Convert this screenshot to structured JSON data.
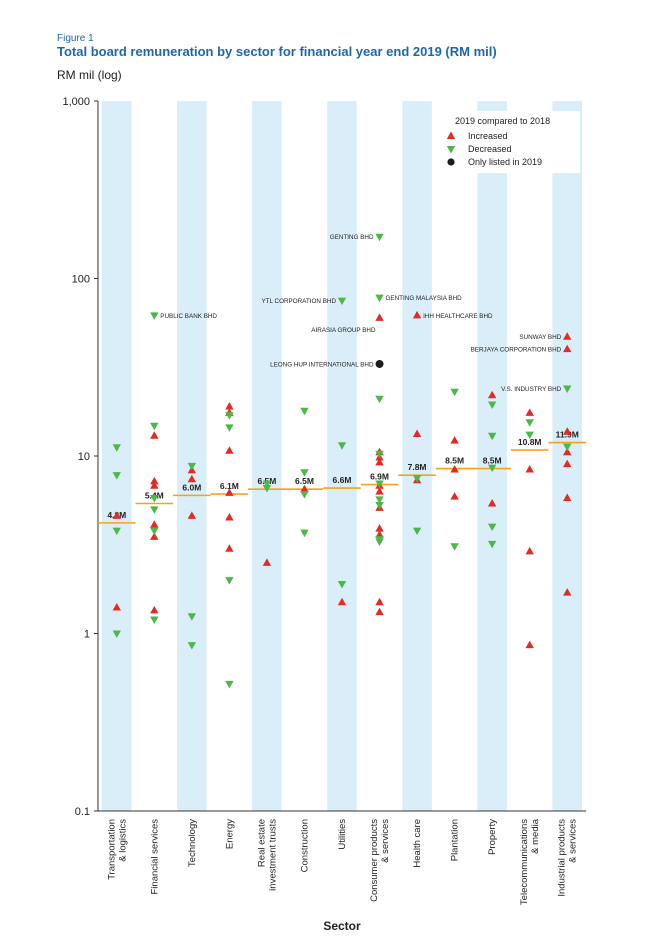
{
  "figure_label": "Figure 1",
  "title": "Total board remuneration by sector for financial year end 2019 (RM mil)",
  "y_unit": "RM mil (log)",
  "colors": {
    "increased": "#e32b24",
    "decreased": "#4cb848",
    "only_2019": "#1d1d1b",
    "median": "#f6a21b",
    "band": "#daeef9"
  },
  "chart_data": {
    "type": "scatter",
    "title": "Total board remuneration by sector for financial year end 2019 (RM mil)",
    "xlabel": "Sector",
    "ylabel": "RM mil (log)",
    "y_scale": "log",
    "ylim": [
      0.1,
      1000
    ],
    "y_ticks": [
      "0.1",
      "1",
      "10",
      "100",
      "1,000"
    ],
    "y_tick_values": [
      0.1,
      1,
      10,
      100,
      1000
    ],
    "grid": false,
    "legend": {
      "title": "2019 compared to 2018",
      "placement": "top-right",
      "entries": [
        {
          "key": "increased",
          "label": "Increased",
          "marker": "triangle-up"
        },
        {
          "key": "decreased",
          "label": "Decreased",
          "marker": "triangle-down"
        },
        {
          "key": "only_2019",
          "label": "Only listed in 2019",
          "marker": "circle"
        }
      ]
    },
    "categories": [
      [
        "Transportation",
        "& logistics"
      ],
      [
        "Financial services"
      ],
      [
        "Technology"
      ],
      [
        "Energy"
      ],
      [
        "Real estate",
        "investment trusts"
      ],
      [
        "Construction"
      ],
      [
        "Utilities"
      ],
      [
        "Consumer products",
        "& services"
      ],
      [
        "Health care"
      ],
      [
        "Plantation"
      ],
      [
        "Property"
      ],
      [
        "Telecommunications",
        "& media"
      ],
      [
        "Industrial products",
        "& services"
      ]
    ],
    "medians": [
      {
        "value": 4.2,
        "label": "4.2M"
      },
      {
        "value": 5.4,
        "label": "5.4M"
      },
      {
        "value": 6.0,
        "label": "6.0M"
      },
      {
        "value": 6.1,
        "label": "6.1M"
      },
      {
        "value": 6.5,
        "label": "6.5M"
      },
      {
        "value": 6.5,
        "label": "6.5M"
      },
      {
        "value": 6.6,
        "label": "6.6M"
      },
      {
        "value": 6.9,
        "label": "6.9M"
      },
      {
        "value": 7.8,
        "label": "7.8M"
      },
      {
        "value": 8.5,
        "label": "8.5M"
      },
      {
        "value": 8.5,
        "label": "8.5M"
      },
      {
        "value": 10.8,
        "label": "10.8M"
      },
      {
        "value": 11.9,
        "label": "11.9M"
      }
    ],
    "series": [
      {
        "key": "increased",
        "name": "Increased",
        "points": [
          {
            "sector": 0,
            "y": 4.6
          },
          {
            "sector": 0,
            "y": 1.4
          },
          {
            "sector": 1,
            "y": 13
          },
          {
            "sector": 1,
            "y": 7.2
          },
          {
            "sector": 1,
            "y": 6.8
          },
          {
            "sector": 1,
            "y": 4.1
          },
          {
            "sector": 1,
            "y": 3.5
          },
          {
            "sector": 1,
            "y": 1.35
          },
          {
            "sector": 2,
            "y": 8.3
          },
          {
            "sector": 2,
            "y": 7.4
          },
          {
            "sector": 2,
            "y": 4.6
          },
          {
            "sector": 3,
            "y": 19
          },
          {
            "sector": 3,
            "y": 17.5
          },
          {
            "sector": 3,
            "y": 10.7
          },
          {
            "sector": 3,
            "y": 6.2
          },
          {
            "sector": 3,
            "y": 4.5
          },
          {
            "sector": 3,
            "y": 3.0
          },
          {
            "sector": 4,
            "y": 2.5
          },
          {
            "sector": 5,
            "y": 6.5
          },
          {
            "sector": 6,
            "y": 1.5
          },
          {
            "sector": 7,
            "y": 60
          },
          {
            "sector": 7,
            "y": 10.5
          },
          {
            "sector": 7,
            "y": 9.8
          },
          {
            "sector": 7,
            "y": 9.2
          },
          {
            "sector": 7,
            "y": 6.8
          },
          {
            "sector": 7,
            "y": 6.3
          },
          {
            "sector": 7,
            "y": 5.1
          },
          {
            "sector": 7,
            "y": 3.9
          },
          {
            "sector": 7,
            "y": 3.6
          },
          {
            "sector": 7,
            "y": 1.5
          },
          {
            "sector": 7,
            "y": 1.32
          },
          {
            "sector": 8,
            "y": 62
          },
          {
            "sector": 8,
            "y": 13.3
          },
          {
            "sector": 8,
            "y": 7.3
          },
          {
            "sector": 9,
            "y": 12.2
          },
          {
            "sector": 9,
            "y": 8.4
          },
          {
            "sector": 9,
            "y": 5.9
          },
          {
            "sector": 10,
            "y": 22
          },
          {
            "sector": 10,
            "y": 5.4
          },
          {
            "sector": 11,
            "y": 17.5
          },
          {
            "sector": 11,
            "y": 8.4
          },
          {
            "sector": 11,
            "y": 2.9
          },
          {
            "sector": 11,
            "y": 0.86
          },
          {
            "sector": 12,
            "y": 47
          },
          {
            "sector": 12,
            "y": 40
          },
          {
            "sector": 12,
            "y": 13.7
          },
          {
            "sector": 12,
            "y": 10.5
          },
          {
            "sector": 12,
            "y": 9.0
          },
          {
            "sector": 12,
            "y": 5.8
          },
          {
            "sector": 12,
            "y": 1.7
          }
        ]
      },
      {
        "key": "decreased",
        "name": "Decreased",
        "points": [
          {
            "sector": 0,
            "y": 11.2
          },
          {
            "sector": 0,
            "y": 7.8
          },
          {
            "sector": 0,
            "y": 3.8
          },
          {
            "sector": 0,
            "y": 1.0
          },
          {
            "sector": 1,
            "y": 62
          },
          {
            "sector": 1,
            "y": 14.8
          },
          {
            "sector": 1,
            "y": 5.8
          },
          {
            "sector": 1,
            "y": 5.0
          },
          {
            "sector": 1,
            "y": 3.8
          },
          {
            "sector": 1,
            "y": 1.2
          },
          {
            "sector": 2,
            "y": 8.8
          },
          {
            "sector": 2,
            "y": 1.25
          },
          {
            "sector": 2,
            "y": 0.86
          },
          {
            "sector": 3,
            "y": 17
          },
          {
            "sector": 3,
            "y": 14.5
          },
          {
            "sector": 3,
            "y": 2.0
          },
          {
            "sector": 3,
            "y": 0.52
          },
          {
            "sector": 4,
            "y": 7.0
          },
          {
            "sector": 4,
            "y": 6.6
          },
          {
            "sector": 5,
            "y": 18
          },
          {
            "sector": 5,
            "y": 8.1
          },
          {
            "sector": 5,
            "y": 6.1
          },
          {
            "sector": 5,
            "y": 3.7
          },
          {
            "sector": 6,
            "y": 75
          },
          {
            "sector": 6,
            "y": 11.5
          },
          {
            "sector": 6,
            "y": 1.9
          },
          {
            "sector": 7,
            "y": 172
          },
          {
            "sector": 7,
            "y": 78
          },
          {
            "sector": 7,
            "y": 21
          },
          {
            "sector": 7,
            "y": 10.3
          },
          {
            "sector": 7,
            "y": 7.0
          },
          {
            "sector": 7,
            "y": 5.7
          },
          {
            "sector": 7,
            "y": 5.3
          },
          {
            "sector": 7,
            "y": 3.4
          },
          {
            "sector": 7,
            "y": 3.3
          },
          {
            "sector": 8,
            "y": 7.5
          },
          {
            "sector": 8,
            "y": 3.8
          },
          {
            "sector": 9,
            "y": 23
          },
          {
            "sector": 9,
            "y": 3.1
          },
          {
            "sector": 10,
            "y": 19.5
          },
          {
            "sector": 10,
            "y": 13
          },
          {
            "sector": 10,
            "y": 8.6
          },
          {
            "sector": 10,
            "y": 4.0
          },
          {
            "sector": 10,
            "y": 3.2
          },
          {
            "sector": 11,
            "y": 15.5
          },
          {
            "sector": 11,
            "y": 13.2
          },
          {
            "sector": 12,
            "y": 24
          },
          {
            "sector": 12,
            "y": 11.3
          }
        ]
      },
      {
        "key": "only_2019",
        "name": "Only listed in 2019",
        "points": [
          {
            "sector": 7,
            "y": 33
          }
        ]
      }
    ],
    "annotations": [
      {
        "text": "PUBLIC BANK BHD",
        "sector": 1,
        "y": 62,
        "side": "right"
      },
      {
        "text": "GENTING BHD",
        "sector": 7,
        "y": 172,
        "side": "left"
      },
      {
        "text": "YTL CORPORATION BHD",
        "sector": 6,
        "y": 75,
        "side": "left"
      },
      {
        "text": "GENTING MALAYSIA BHD",
        "sector": 7,
        "y": 78,
        "side": "right"
      },
      {
        "text": "AIRASIA GROUP BHD",
        "sector": 7,
        "y": 60,
        "side": "left",
        "below": true
      },
      {
        "text": "IHH HEALTHCARE BHD",
        "sector": 8,
        "y": 62,
        "side": "right"
      },
      {
        "text": "LEONG HUP INTERNATIONAL BHD",
        "sector": 7,
        "y": 33,
        "side": "left"
      },
      {
        "text": "SUNWAY BHD",
        "sector": 12,
        "y": 47,
        "side": "left"
      },
      {
        "text": "BERJAYA CORPORATION BHD",
        "sector": 12,
        "y": 40,
        "side": "left"
      },
      {
        "text": "V.S. INDUSTRY BHD",
        "sector": 12,
        "y": 24,
        "side": "left"
      }
    ]
  }
}
